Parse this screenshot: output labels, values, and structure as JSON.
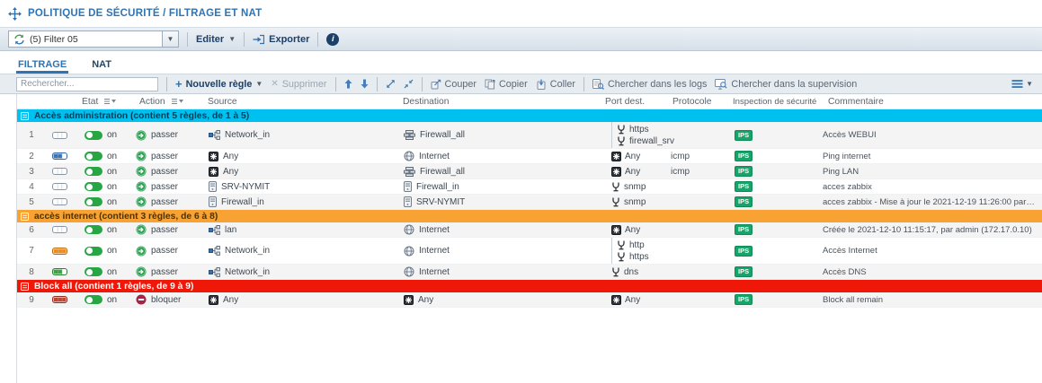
{
  "page_title": "POLITIQUE DE SÉCURITÉ / FILTRAGE ET NAT",
  "policy_toolbar": {
    "filter_select_value": "(5) Filter 05",
    "edit_button": "Editer",
    "export_button": "Exporter",
    "info_glyph": "i"
  },
  "tabs": [
    {
      "label": "FILTRAGE",
      "active": true
    },
    {
      "label": "NAT",
      "active": false
    }
  ],
  "rules_toolbar": {
    "search_placeholder": "Rechercher...",
    "new_rule": "Nouvelle règle",
    "delete": "Supprimer",
    "cut": "Couper",
    "copy": "Copier",
    "paste": "Coller",
    "search_logs": "Chercher dans les logs",
    "search_monitoring": "Chercher dans la supervision"
  },
  "table": {
    "columns": [
      {
        "label": "",
        "sortable": false
      },
      {
        "label": "",
        "sortable": false
      },
      {
        "label": "État",
        "sortable": true
      },
      {
        "label": "Action",
        "sortable": true
      },
      {
        "label": "Source",
        "sortable": false
      },
      {
        "label": "Destination",
        "sortable": false
      },
      {
        "label": "Port dest.",
        "sortable": false
      },
      {
        "label": "Protocole",
        "sortable": false
      },
      {
        "label": "Inspection de sécurité",
        "sortable": true
      },
      {
        "label": "Commentaire",
        "sortable": false
      }
    ],
    "groups": [
      {
        "label": "Accès administration (contient 5 règles, de 1 à 5)",
        "color": "#00c0ef",
        "text_color": "#063a52",
        "rules": [
          {
            "num": "1",
            "usage": "none",
            "state": "on",
            "action": "passer",
            "source": {
              "icon": "network",
              "name": "Network_in"
            },
            "destination": {
              "icon": "fwgroup",
              "name": "Firewall_all"
            },
            "ports": [
              {
                "icon": "service",
                "name": "https"
              },
              {
                "icon": "service",
                "name": "firewall_srv"
              }
            ],
            "protocol": "",
            "inspection": "IPS",
            "comment": "Accès WEBUI"
          },
          {
            "num": "2",
            "usage": "blue",
            "state": "on",
            "action": "passer",
            "source": {
              "icon": "any",
              "name": "Any"
            },
            "destination": {
              "icon": "globe",
              "name": "Internet"
            },
            "ports": [
              {
                "icon": "any",
                "name": "Any"
              }
            ],
            "protocol": "icmp",
            "inspection": "IPS",
            "comment": "Ping internet"
          },
          {
            "num": "3",
            "usage": "none",
            "state": "on",
            "action": "passer",
            "source": {
              "icon": "any",
              "name": "Any"
            },
            "destination": {
              "icon": "fwgroup",
              "name": "Firewall_all"
            },
            "ports": [
              {
                "icon": "any",
                "name": "Any"
              }
            ],
            "protocol": "icmp",
            "inspection": "IPS",
            "comment": "Ping LAN"
          },
          {
            "num": "4",
            "usage": "none",
            "state": "on",
            "action": "passer",
            "source": {
              "icon": "server",
              "name": "SRV-NYMIT"
            },
            "destination": {
              "icon": "server",
              "name": "Firewall_in"
            },
            "ports": [
              {
                "icon": "service",
                "name": "snmp"
              }
            ],
            "protocol": "",
            "inspection": "IPS",
            "comment": "acces zabbix"
          },
          {
            "num": "5",
            "usage": "none",
            "state": "on",
            "action": "passer",
            "source": {
              "icon": "server",
              "name": "Firewall_in"
            },
            "destination": {
              "icon": "server",
              "name": "SRV-NYMIT"
            },
            "ports": [
              {
                "icon": "service",
                "name": "snmp"
              }
            ],
            "protocol": "",
            "inspection": "IPS",
            "comment": "acces zabbix - Mise à jour le 2021-12-19 11:26:00 par admin (17..."
          }
        ]
      },
      {
        "label": "accès internet (contient 3 règles, de 6 à 8)",
        "color": "#f7a233",
        "text_color": "#4a3305",
        "rules": [
          {
            "num": "6",
            "usage": "none",
            "state": "on",
            "action": "passer",
            "source": {
              "icon": "network",
              "name": "lan"
            },
            "destination": {
              "icon": "globe",
              "name": "Internet"
            },
            "ports": [
              {
                "icon": "any",
                "name": "Any"
              }
            ],
            "protocol": "",
            "inspection": "IPS",
            "comment": "Créée le 2021-12-10 11:15:17, par admin (172.17.0.10)"
          },
          {
            "num": "7",
            "usage": "orange",
            "state": "on",
            "action": "passer",
            "source": {
              "icon": "network",
              "name": "Network_in"
            },
            "destination": {
              "icon": "globe",
              "name": "Internet"
            },
            "ports": [
              {
                "icon": "service",
                "name": "http"
              },
              {
                "icon": "service",
                "name": "https"
              }
            ],
            "protocol": "",
            "inspection": "IPS",
            "comment": "Accès Internet"
          },
          {
            "num": "8",
            "usage": "green",
            "state": "on",
            "action": "passer",
            "source": {
              "icon": "network",
              "name": "Network_in"
            },
            "destination": {
              "icon": "globe",
              "name": "Internet"
            },
            "ports": [
              {
                "icon": "service",
                "name": "dns"
              }
            ],
            "protocol": "",
            "inspection": "IPS",
            "comment": "Accès DNS"
          }
        ]
      },
      {
        "label": "Block all (contient 1 règles, de 9 à 9)",
        "color": "#ee1708",
        "text_color": "#ffffff",
        "rules": [
          {
            "num": "9",
            "usage": "red",
            "state": "on",
            "action": "bloquer",
            "source": {
              "icon": "any",
              "name": "Any"
            },
            "destination": {
              "icon": "any",
              "name": "Any"
            },
            "ports": [
              {
                "icon": "any",
                "name": "Any"
              }
            ],
            "protocol": "",
            "inspection": "IPS",
            "comment": "Block all remain"
          }
        ]
      }
    ]
  }
}
